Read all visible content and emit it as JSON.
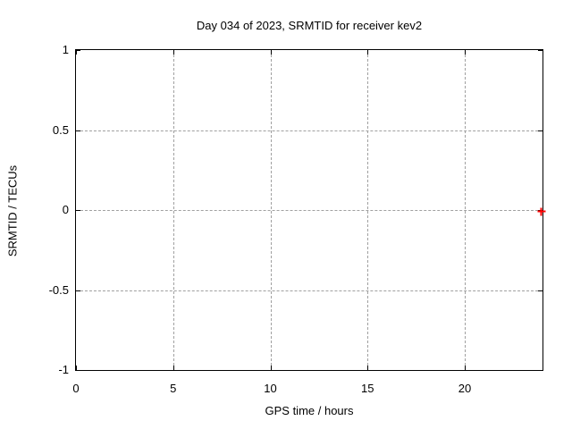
{
  "chart_data": {
    "type": "scatter",
    "title": "Day 034 of 2023, SRMTID for receiver kev2",
    "xlabel": "GPS time / hours",
    "ylabel": "SRMTID / TECUs",
    "xlim": [
      0,
      24
    ],
    "ylim": [
      -1,
      1
    ],
    "xticks": [
      0,
      5,
      10,
      15,
      20
    ],
    "xtick_labels": [
      "0",
      "5",
      "10",
      "15",
      "20"
    ],
    "yticks": [
      1,
      0.5,
      0,
      -0.5,
      -1
    ],
    "ytick_labels": [
      "1",
      "0.5",
      "0",
      "-0.5",
      "-1"
    ],
    "grid": true,
    "legend": "none",
    "series": [
      {
        "name": "SRMTID",
        "marker": "plus",
        "color": "#ff0000",
        "points": [
          {
            "x": 23.95,
            "y": -0.01
          }
        ]
      }
    ],
    "colors": {
      "background": "#ffffff",
      "axis": "#000000",
      "grid": "#a0a0a0",
      "text": "#000000",
      "marker": "#ff0000"
    }
  }
}
